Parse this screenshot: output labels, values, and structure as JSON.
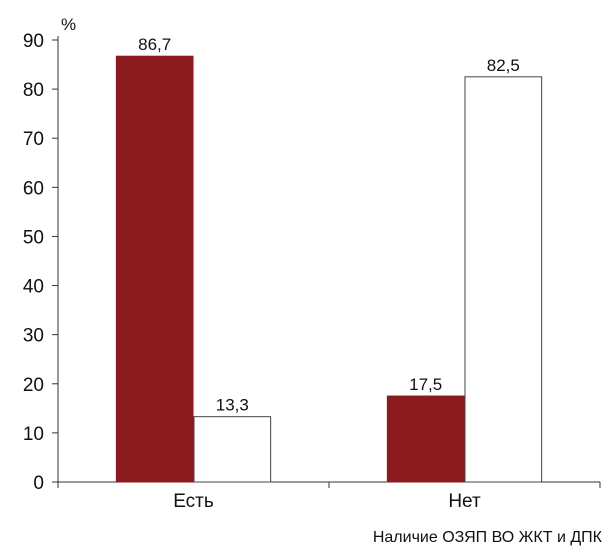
{
  "chart_data": {
    "type": "bar",
    "categories": [
      "Есть",
      "Нет"
    ],
    "series": [
      {
        "values": [
          86.7,
          17.5
        ],
        "labels": [
          "86,7",
          "17,5"
        ],
        "color": "#8b1a1f"
      },
      {
        "values": [
          13.3,
          82.5
        ],
        "labels": [
          "13,3",
          "82,5"
        ],
        "color": "#ffffff"
      }
    ],
    "ylabel": "%",
    "xlabel": "Наличие ОЗЯП ВО ЖКТ и ДПК",
    "ylim": [
      0,
      90
    ],
    "yticks": [
      0,
      10,
      20,
      30,
      40,
      50,
      60,
      70,
      80,
      90
    ],
    "grid": false,
    "legend": "none"
  }
}
